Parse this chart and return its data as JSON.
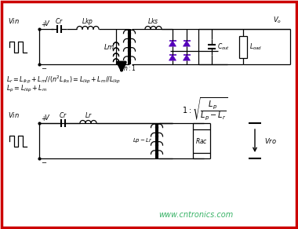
{
  "bg_color": "#ffffff",
  "border_color": "#cc0000",
  "border_linewidth": 2.5,
  "watermark": "www.cntronics.com",
  "watermark_color": "#22aa55",
  "watermark_fontsize": 7,
  "diode_color": "#5500bb",
  "line_color": "#000000"
}
